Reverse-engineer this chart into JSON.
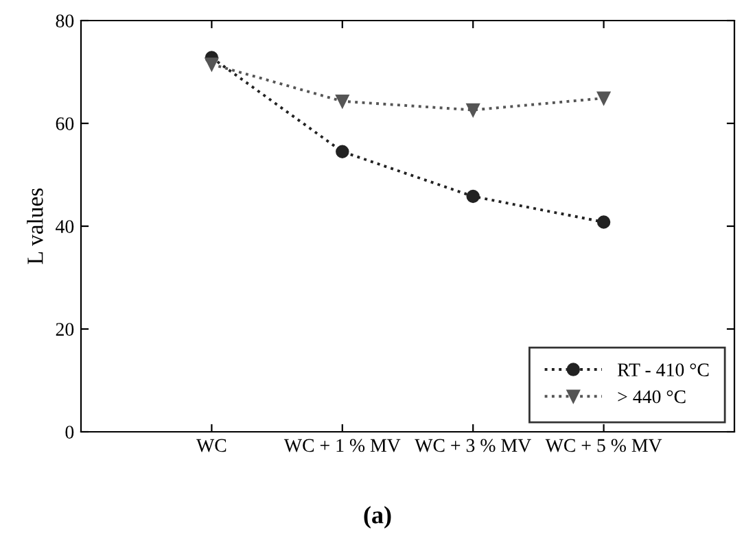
{
  "chart_data": {
    "type": "line",
    "ylabel": "L values",
    "categories": [
      "WC",
      "WC + 1 % MV",
      "WC + 3 % MV",
      "WC + 5 % MV"
    ],
    "series": [
      {
        "name": "RT - 410 °C",
        "color": "#222222",
        "marker": "circle",
        "values": [
          72.8,
          54.5,
          45.8,
          40.8
        ]
      },
      {
        "name": "> 440 °C",
        "color": "#555555",
        "marker": "triangle",
        "values": [
          71.5,
          64.3,
          62.6,
          64.9
        ]
      }
    ],
    "line_style": "dotted",
    "ylim": [
      0,
      80
    ],
    "yticks": [
      0,
      20,
      40,
      60,
      80
    ],
    "grid": false,
    "legend": "bottom right",
    "annotations": [
      "(a)"
    ]
  }
}
